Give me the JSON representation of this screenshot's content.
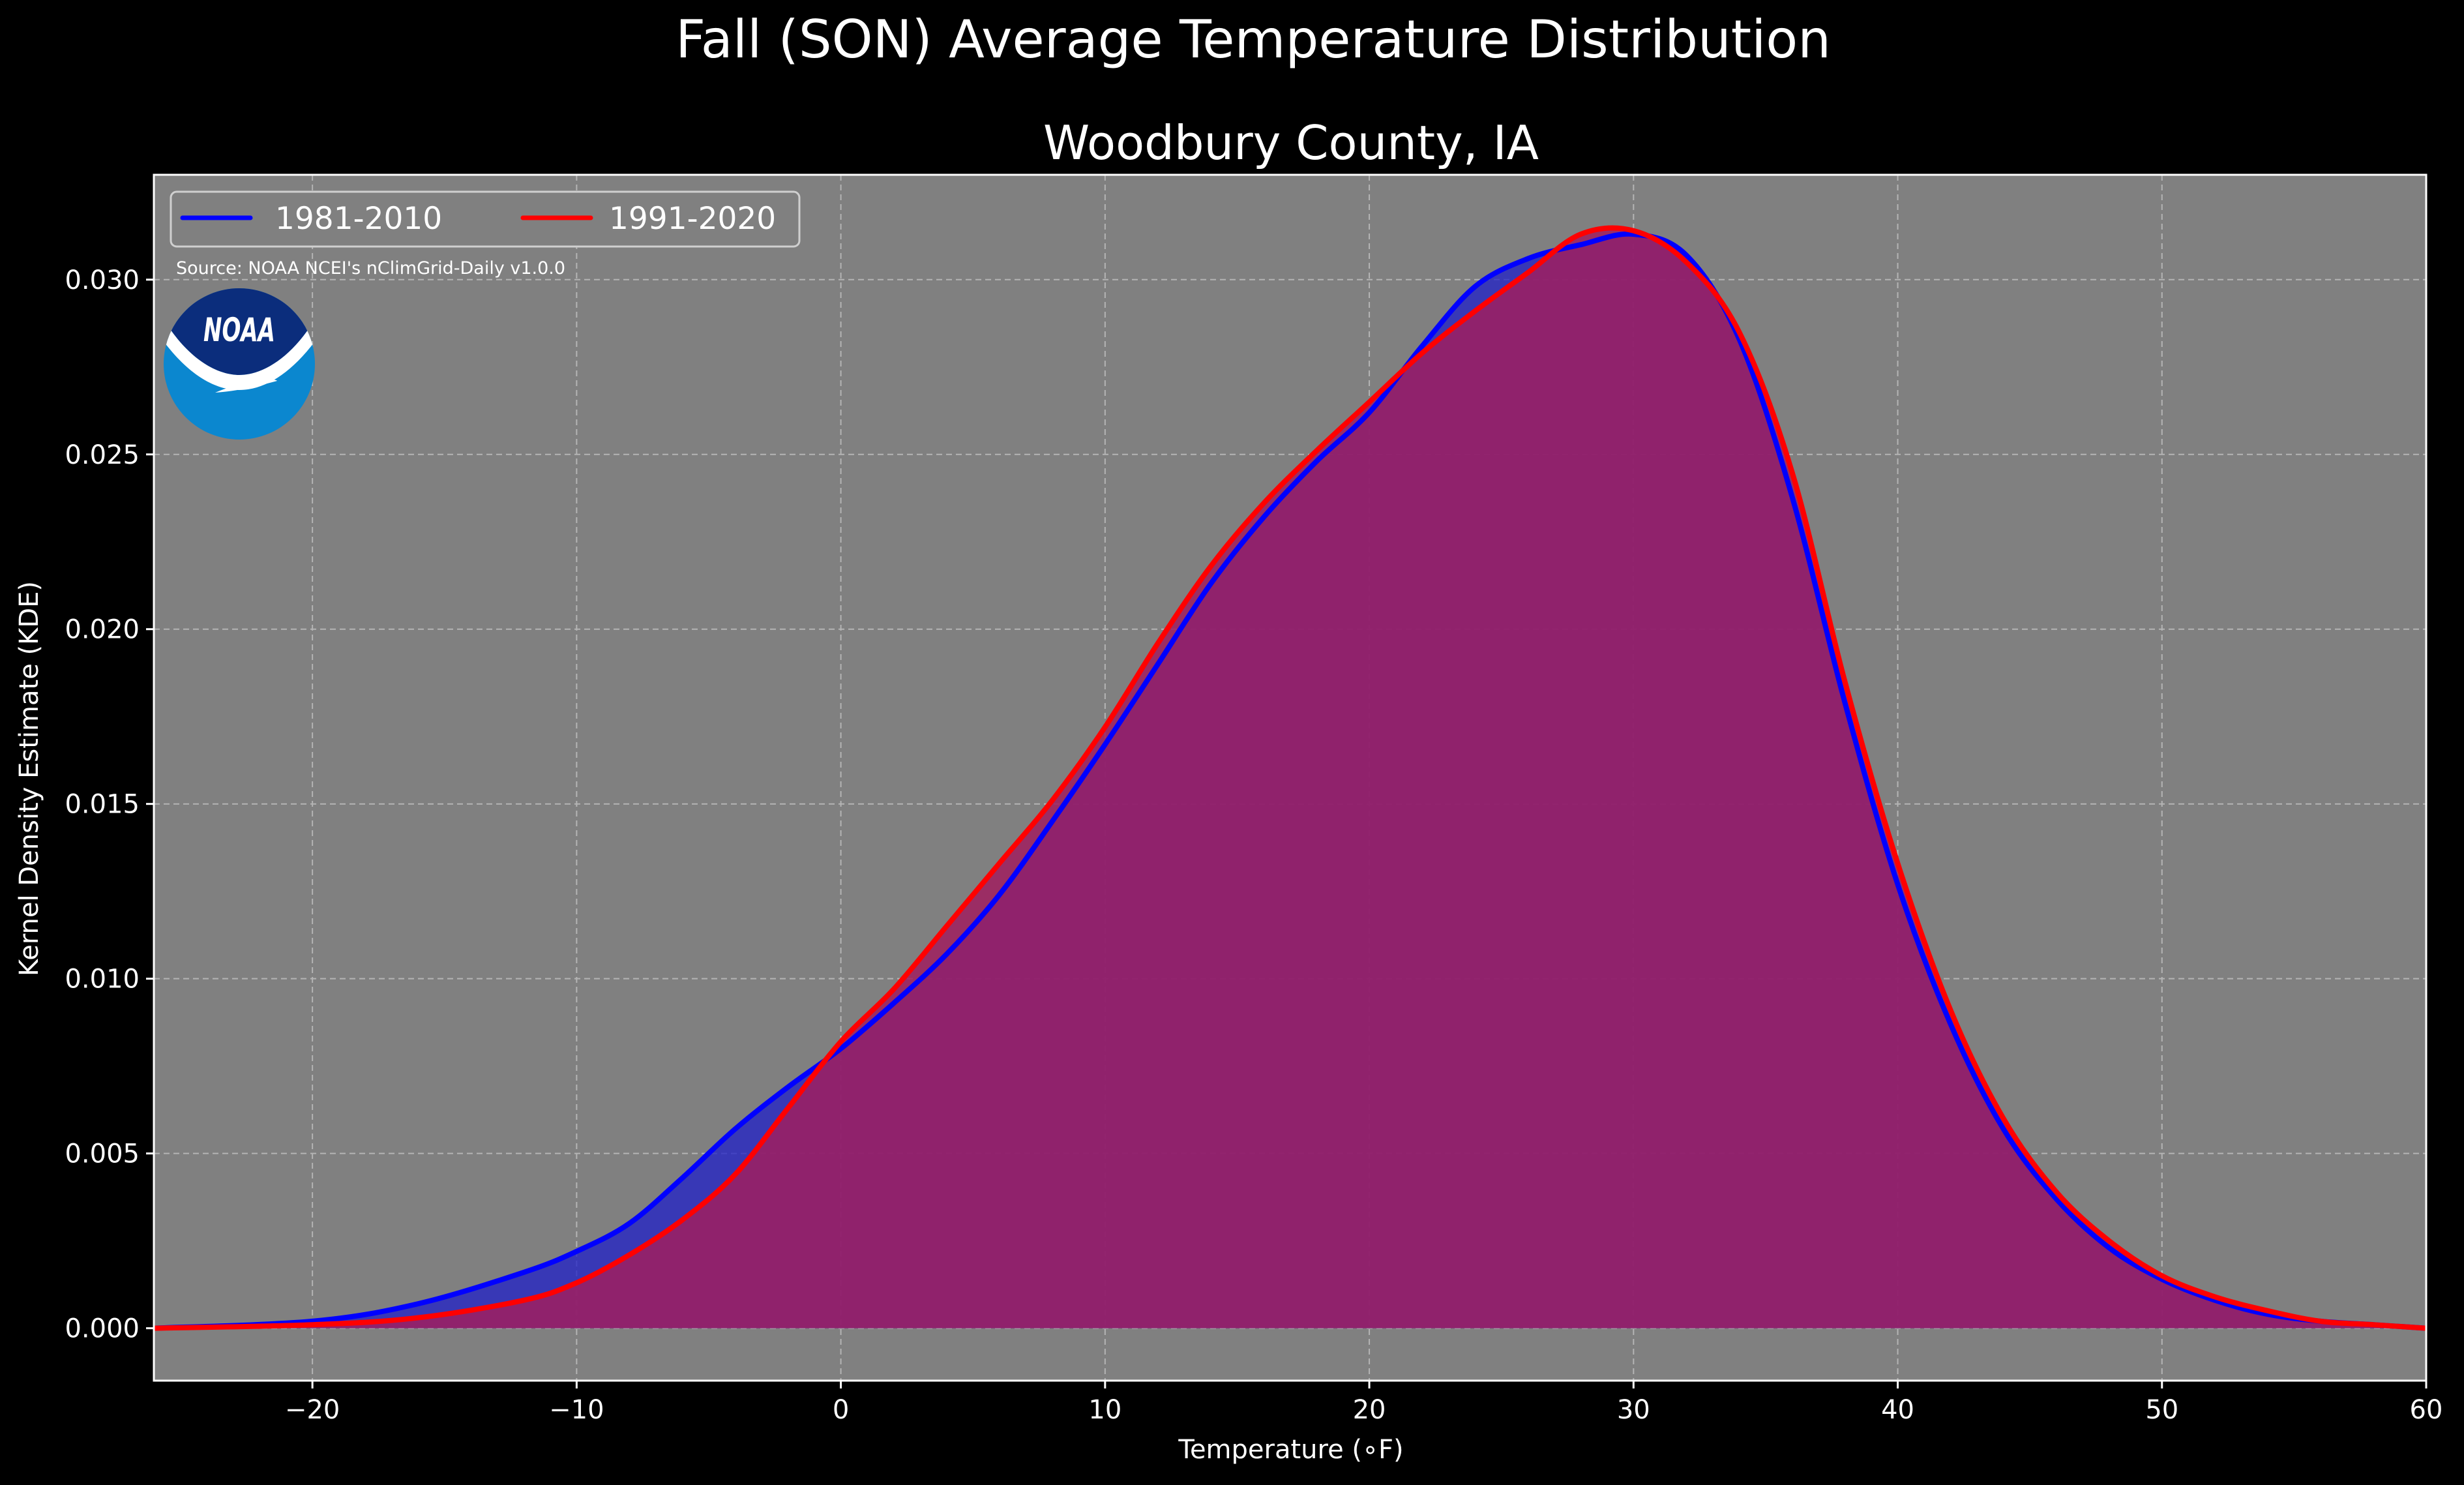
{
  "figure_title": "Fall (SON) Average Temperature Distribution",
  "source": "Source: NOAA NCEI's nClimGrid-Daily v1.0.0",
  "logo_text": "NOAA",
  "colors": {
    "background": "#000000",
    "plot_bg": "#808080",
    "grid": "#b4b4b4",
    "series_1981": "#0000ff",
    "series_1991": "#ff0000",
    "fill_1981": "#2020c8",
    "fill_1991": "#a01f5f",
    "noaa_dark": "#0b2d7c",
    "noaa_light": "#0b87cf"
  },
  "chart_data": {
    "type": "area",
    "title": "Woodbury County, IA",
    "xlabel": "Temperature ($^\\circ$F)",
    "xlabel_display": "Temperature (∘F)",
    "ylabel": "Kernel Density Estimate (KDE)",
    "xlim": [
      -26,
      60
    ],
    "ylim": [
      -0.0015,
      0.033
    ],
    "x_ticks": [
      -20,
      -10,
      0,
      10,
      20,
      30,
      40,
      50,
      60
    ],
    "x_tick_labels": [
      "−20",
      "−10",
      "0",
      "10",
      "20",
      "30",
      "40",
      "50",
      "60"
    ],
    "y_ticks": [
      0.0,
      0.005,
      0.01,
      0.015,
      0.02,
      0.025,
      0.03
    ],
    "y_tick_labels": [
      "0.000",
      "0.005",
      "0.010",
      "0.015",
      "0.020",
      "0.025",
      "0.030"
    ],
    "grid": true,
    "legend_position": "top-left",
    "series": [
      {
        "name": "1981-2010",
        "x": [
          -26,
          -20,
          -16,
          -12,
          -10,
          -8,
          -6,
          -4,
          -2,
          0,
          2,
          4,
          6,
          8,
          10,
          12,
          14,
          16,
          18,
          20,
          22,
          24,
          26,
          28,
          30,
          32,
          34,
          36,
          38,
          40,
          42,
          44,
          46,
          48,
          50,
          52,
          54,
          56,
          58,
          60
        ],
        "y": [
          0.0,
          0.0002,
          0.0007,
          0.0016,
          0.0022,
          0.003,
          0.0043,
          0.0057,
          0.0069,
          0.008,
          0.0093,
          0.0107,
          0.0124,
          0.0145,
          0.0167,
          0.019,
          0.0213,
          0.0232,
          0.0248,
          0.0262,
          0.0281,
          0.0298,
          0.0306,
          0.031,
          0.0313,
          0.0307,
          0.0283,
          0.0238,
          0.0179,
          0.0127,
          0.0087,
          0.0057,
          0.0037,
          0.0023,
          0.0014,
          0.0008,
          0.0004,
          0.0002,
          0.0001,
          0.0
        ]
      },
      {
        "name": "1991-2020",
        "x": [
          -26,
          -20,
          -16,
          -12,
          -10,
          -8,
          -6,
          -4,
          -2,
          0,
          2,
          4,
          6,
          8,
          10,
          12,
          14,
          16,
          18,
          20,
          22,
          24,
          26,
          28,
          30,
          32,
          34,
          36,
          38,
          40,
          42,
          44,
          46,
          48,
          50,
          52,
          54,
          56,
          58,
          60
        ],
        "y": [
          0.0,
          0.0001,
          0.0003,
          0.0008,
          0.0013,
          0.0021,
          0.0031,
          0.0044,
          0.0063,
          0.0082,
          0.0097,
          0.0115,
          0.0133,
          0.0151,
          0.0172,
          0.0196,
          0.0218,
          0.0236,
          0.0251,
          0.0265,
          0.0279,
          0.0291,
          0.0302,
          0.0313,
          0.0314,
          0.0305,
          0.0285,
          0.0245,
          0.0185,
          0.0133,
          0.0091,
          0.006,
          0.0039,
          0.0025,
          0.0015,
          0.0009,
          0.0005,
          0.0002,
          0.0001,
          0.0
        ]
      }
    ]
  }
}
